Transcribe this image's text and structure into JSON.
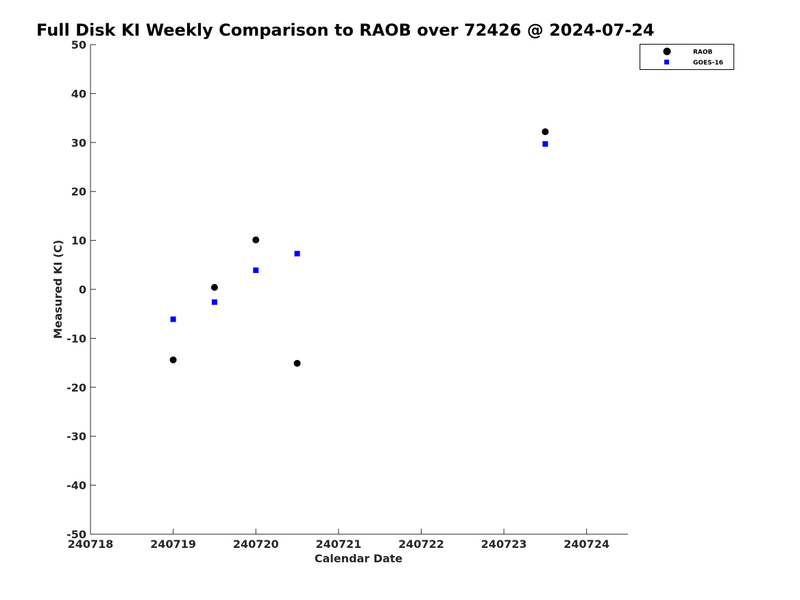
{
  "chart_data": {
    "type": "scatter",
    "title": "Full Disk KI Weekly Comparison to RAOB over 72426 @ 2024-07-24",
    "xlabel": "Calendar Date",
    "ylabel": "Measured KI (C)",
    "xlim": [
      240718,
      240724.5
    ],
    "ylim": [
      -50,
      50
    ],
    "x_ticks": [
      240718,
      240719,
      240720,
      240721,
      240722,
      240723,
      240724
    ],
    "x_tick_labels": [
      "240718",
      "240719",
      "240720",
      "240721",
      "240722",
      "240723",
      "240724"
    ],
    "y_ticks": [
      50,
      40,
      30,
      20,
      10,
      0,
      -10,
      -20,
      -30,
      -40,
      -50
    ],
    "y_tick_labels": [
      "50",
      "40",
      "30",
      "20",
      "10",
      "0",
      "-10",
      "-20",
      "-30",
      "-40",
      "-50"
    ],
    "grid": false,
    "legend_position": "top-right outside",
    "series": [
      {
        "name": "RAOB",
        "marker": "circle",
        "color": "#000000",
        "points": [
          {
            "x": 240719.0,
            "y": -14.4
          },
          {
            "x": 240719.5,
            "y": 0.4
          },
          {
            "x": 240720.0,
            "y": 10.1
          },
          {
            "x": 240720.5,
            "y": -15.1
          },
          {
            "x": 240723.5,
            "y": 32.2
          }
        ]
      },
      {
        "name": "GOES-16",
        "marker": "square",
        "color": "#0000ff",
        "points": [
          {
            "x": 240719.0,
            "y": -6.1
          },
          {
            "x": 240719.5,
            "y": -2.6
          },
          {
            "x": 240720.0,
            "y": 3.9
          },
          {
            "x": 240720.5,
            "y": 7.3
          },
          {
            "x": 240723.5,
            "y": 29.7
          }
        ]
      }
    ]
  }
}
